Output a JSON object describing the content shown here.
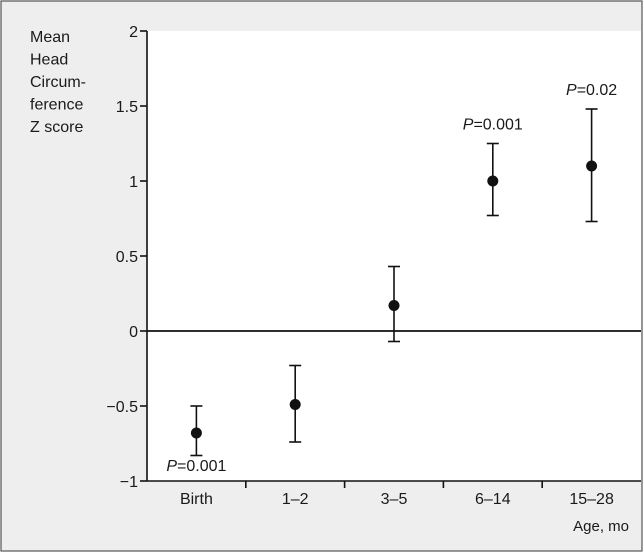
{
  "chart_data": {
    "type": "scatter",
    "subtype": "point-with-error-bars",
    "title": "",
    "ylabel_lines": [
      "Mean",
      "Head",
      "Circum-",
      "ference",
      "Z score"
    ],
    "xlabel": "Age, mo",
    "categories": [
      "Birth",
      "1–2",
      "3–5",
      "6–14",
      "15–28"
    ],
    "ylim": [
      -1,
      2
    ],
    "yticks": [
      -1,
      -0.5,
      0,
      0.5,
      1,
      1.5,
      2
    ],
    "ytick_labels": [
      "−1",
      "−0.5",
      "0",
      "0.5",
      "1",
      "1.5",
      "2"
    ],
    "zero_line": true,
    "grid": false,
    "legend": "none",
    "points": [
      {
        "category": "Birth",
        "mean": -0.68,
        "lower": -0.83,
        "upper": -0.5,
        "p_label": "P",
        "p_value": "=0.001",
        "p_position": "below"
      },
      {
        "category": "1–2",
        "mean": -0.49,
        "lower": -0.74,
        "upper": -0.23
      },
      {
        "category": "3–5",
        "mean": 0.17,
        "lower": -0.07,
        "upper": 0.43
      },
      {
        "category": "6–14",
        "mean": 1.0,
        "lower": 0.77,
        "upper": 1.25,
        "p_label": "P",
        "p_value": "=0.001",
        "p_position": "above"
      },
      {
        "category": "15–28",
        "mean": 1.1,
        "lower": 0.73,
        "upper": 1.48,
        "p_label": "P",
        "p_value": "=0.02",
        "p_position": "above"
      }
    ],
    "colors": {
      "background": "#eeeeee",
      "plot_background": "#ffffff",
      "frame": "#555555",
      "ink": "#111111"
    }
  }
}
